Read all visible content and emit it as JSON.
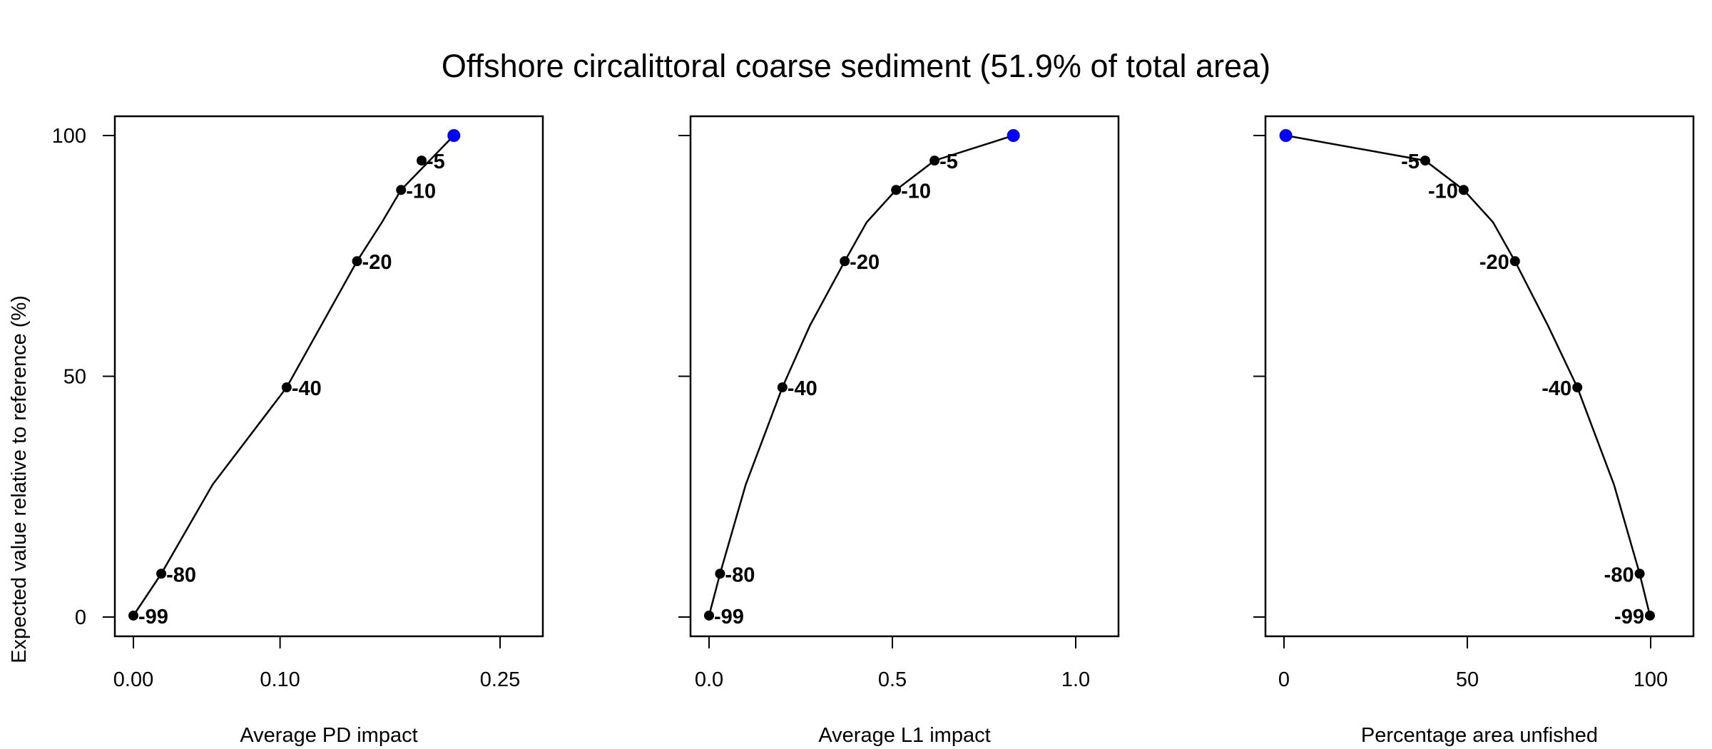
{
  "title": "Offshore circalittoral coarse sediment (51.9% of total area)",
  "ylabel": "Expected value relative to reference (%)",
  "colors": {
    "points": "#000000",
    "highlight": "#0000ff",
    "line": "#000000"
  },
  "chart_data": [
    {
      "type": "line",
      "xlabel": "Average PD impact",
      "xlim": [
        0,
        0.25
      ],
      "ylim": [
        0,
        100
      ],
      "xticks": [
        "0.00",
        "0.10",
        "0.25"
      ],
      "xtick_values": [
        0,
        0.1,
        0.25
      ],
      "yticks": [
        "0",
        "50",
        "100"
      ],
      "ytick_values": [
        0,
        50,
        100
      ],
      "label_side": "right",
      "line": {
        "x": [
          0.0,
          0.019,
          0.054,
          0.1045,
          0.1525,
          0.1695,
          0.1825,
          0.2185
        ],
        "y": [
          0.3,
          9,
          27.5,
          47.7,
          73.9,
          82,
          88.7,
          100
        ]
      },
      "points": [
        {
          "x": 0.0,
          "y": 0.3,
          "label": "-99"
        },
        {
          "x": 0.019,
          "y": 9,
          "label": "-80"
        },
        {
          "x": 0.1045,
          "y": 47.7,
          "label": "-40"
        },
        {
          "x": 0.1525,
          "y": 73.9,
          "label": "-20"
        },
        {
          "x": 0.1825,
          "y": 88.7,
          "label": "-10"
        },
        {
          "x": 0.1965,
          "y": 94.8,
          "label": "-5"
        }
      ],
      "highlight": {
        "x": 0.2185,
        "y": 100
      }
    },
    {
      "type": "line",
      "xlabel": "Average L1 impact",
      "xlim": [
        0,
        1.0
      ],
      "ylim": [
        0,
        100
      ],
      "xticks": [
        "0.0",
        "0.5",
        "1.0"
      ],
      "xtick_values": [
        0,
        0.5,
        1.0
      ],
      "yticks": [
        "0",
        "50",
        "100"
      ],
      "ytick_values": [
        0,
        50,
        100
      ],
      "label_side": "right",
      "line": {
        "x": [
          0.0,
          0.03,
          0.1,
          0.2,
          0.275,
          0.37,
          0.43,
          0.51,
          0.615,
          0.83
        ],
        "y": [
          0.3,
          9,
          27.5,
          47.7,
          60.5,
          73.9,
          82,
          88.7,
          94.8,
          100
        ]
      },
      "points": [
        {
          "x": 0.0,
          "y": 0.3,
          "label": "-99"
        },
        {
          "x": 0.03,
          "y": 9,
          "label": "-80"
        },
        {
          "x": 0.2,
          "y": 47.7,
          "label": "-40"
        },
        {
          "x": 0.37,
          "y": 73.9,
          "label": "-20"
        },
        {
          "x": 0.51,
          "y": 88.7,
          "label": "-10"
        },
        {
          "x": 0.615,
          "y": 94.8,
          "label": "-5"
        }
      ],
      "highlight": {
        "x": 0.83,
        "y": 100
      }
    },
    {
      "type": "line",
      "xlabel": "Percentage area unfished",
      "xlim": [
        0,
        100
      ],
      "ylim": [
        0,
        100
      ],
      "xticks": [
        "0",
        "50",
        "100"
      ],
      "xtick_values": [
        0,
        50,
        100
      ],
      "yticks": [
        "0",
        "50",
        "100"
      ],
      "ytick_values": [
        0,
        50,
        100
      ],
      "label_side": "left",
      "line": {
        "x": [
          0.5,
          38.5,
          49,
          57,
          63,
          72,
          80,
          90,
          97,
          99.8
        ],
        "y": [
          100,
          94.8,
          88.7,
          82,
          73.9,
          60.5,
          47.7,
          27.5,
          9,
          0.3
        ]
      },
      "points": [
        {
          "x": 38.5,
          "y": 94.8,
          "label": "-5"
        },
        {
          "x": 49,
          "y": 88.7,
          "label": "-10"
        },
        {
          "x": 63,
          "y": 73.9,
          "label": "-20"
        },
        {
          "x": 80,
          "y": 47.7,
          "label": "-40"
        },
        {
          "x": 97,
          "y": 9,
          "label": "-80"
        },
        {
          "x": 99.8,
          "y": 0.3,
          "label": "-99"
        }
      ],
      "highlight": {
        "x": 0.5,
        "y": 100
      }
    }
  ]
}
